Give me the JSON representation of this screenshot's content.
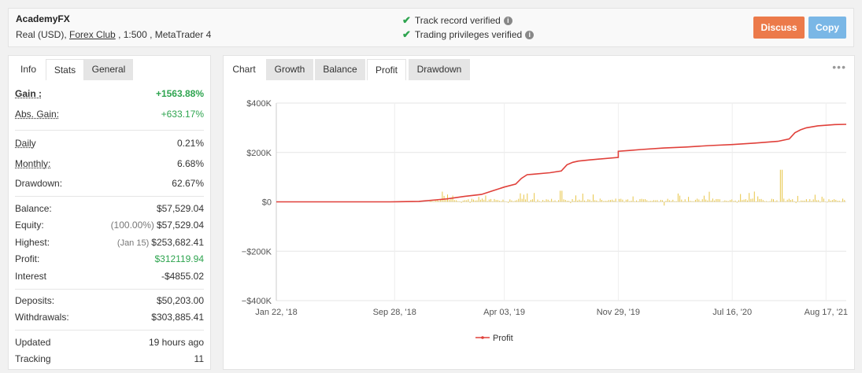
{
  "header": {
    "account_name": "AcademyFX",
    "account_type": "Real (USD),",
    "broker": "Forex Club",
    "account_rest": ", 1:500 , MetaTrader 4",
    "verified_1": "Track record verified",
    "verified_2": "Trading privileges verified",
    "discuss_label": "Discuss",
    "copy_label": "Copy"
  },
  "left_tabs": [
    "Info",
    "Stats",
    "General"
  ],
  "stats": [
    {
      "label": "Gain :",
      "value": "+1563.88%"
    },
    {
      "label": "Abs. Gain:",
      "value": "+633.17%"
    },
    {
      "label": "Daily",
      "value": "0.21%"
    },
    {
      "label": "Monthly:",
      "value": "6.68%"
    },
    {
      "label": "Drawdown:",
      "value": "62.67%"
    },
    {
      "label": "Balance:",
      "value": "$57,529.04"
    },
    {
      "label": "Equity:",
      "note": "(100.00%)",
      "value": "$57,529.04"
    },
    {
      "label": "Highest:",
      "note": "(Jan 15)",
      "value": "$253,682.41"
    },
    {
      "label": "Profit:",
      "value": "$312119.94"
    },
    {
      "label": "Interest",
      "value": "-$4855.02"
    },
    {
      "label": "Deposits:",
      "value": "$50,203.00"
    },
    {
      "label": "Withdrawals:",
      "value": "$303,885.41"
    },
    {
      "label": "Updated",
      "value": "19 hours ago"
    },
    {
      "label": "Tracking",
      "value": "11"
    }
  ],
  "chart_tabs": [
    "Chart",
    "Growth",
    "Balance",
    "Profit",
    "Drawdown"
  ],
  "menu_glyph": "•••",
  "colors": {
    "line": "#e0403a",
    "bars": "#e8c547",
    "green": "#2ea44f",
    "discuss": "#ec7a4a",
    "copy": "#7ab7e6"
  },
  "chart_data": {
    "type": "line",
    "title": "",
    "ylabel": "",
    "xlabel": "",
    "ylim": [
      -400000,
      400000
    ],
    "y_ticks": [
      "$400K",
      "$200K",
      "$0",
      "−$200K",
      "−$400K"
    ],
    "x_tick_labels": [
      "Jan 22, '18",
      "Sep 28, '18",
      "Apr 03, '19",
      "Nov 29, '19",
      "Jul 16, '20",
      "Aug 17, '21"
    ],
    "legend": "Profit",
    "legend_position": "bottom",
    "grid": true,
    "series": [
      {
        "name": "Profit",
        "x": [
          0,
          0.05,
          0.1,
          0.15,
          0.2,
          0.25,
          0.28,
          0.3,
          0.33,
          0.36,
          0.38,
          0.4,
          0.42,
          0.43,
          0.44,
          0.45,
          0.48,
          0.5,
          0.51,
          0.52,
          0.53,
          0.55,
          0.6,
          0.6,
          0.62,
          0.64,
          0.68,
          0.72,
          0.76,
          0.8,
          0.84,
          0.88,
          0.9,
          0.91,
          0.92,
          0.93,
          0.95,
          0.98,
          1.0
        ],
        "y": [
          0,
          0,
          0,
          0,
          0,
          2000,
          8000,
          12000,
          22000,
          30000,
          45000,
          60000,
          72000,
          95000,
          110000,
          112000,
          118000,
          125000,
          150000,
          160000,
          165000,
          170000,
          180000,
          205000,
          208000,
          212000,
          218000,
          222000,
          228000,
          232000,
          238000,
          245000,
          255000,
          280000,
          292000,
          300000,
          308000,
          313000,
          314000
        ]
      }
    ]
  }
}
